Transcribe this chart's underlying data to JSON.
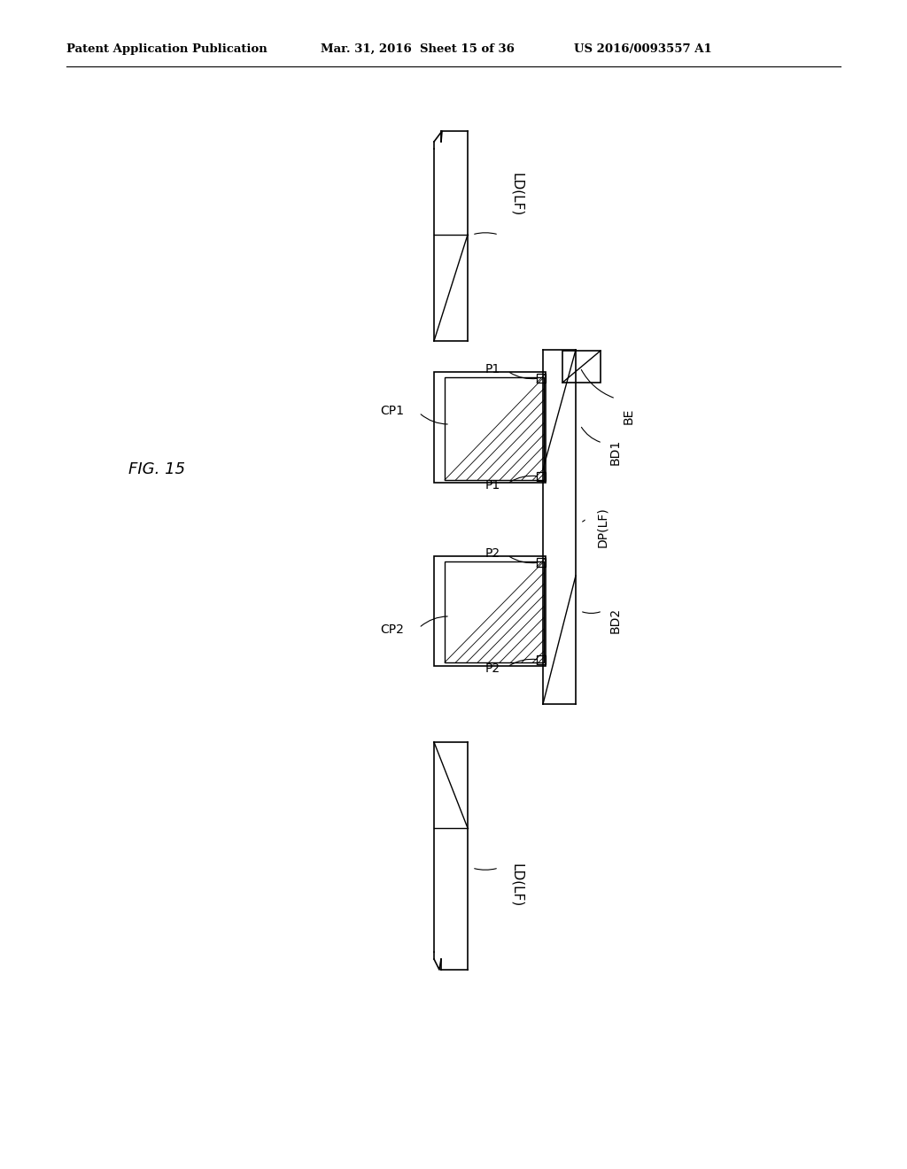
{
  "bg_color": "#ffffff",
  "header_left": "Patent Application Publication",
  "header_mid": "Mar. 31, 2016  Sheet 15 of 36",
  "header_right": "US 2016/0093557 A1",
  "fig_label": "FIG. 15"
}
